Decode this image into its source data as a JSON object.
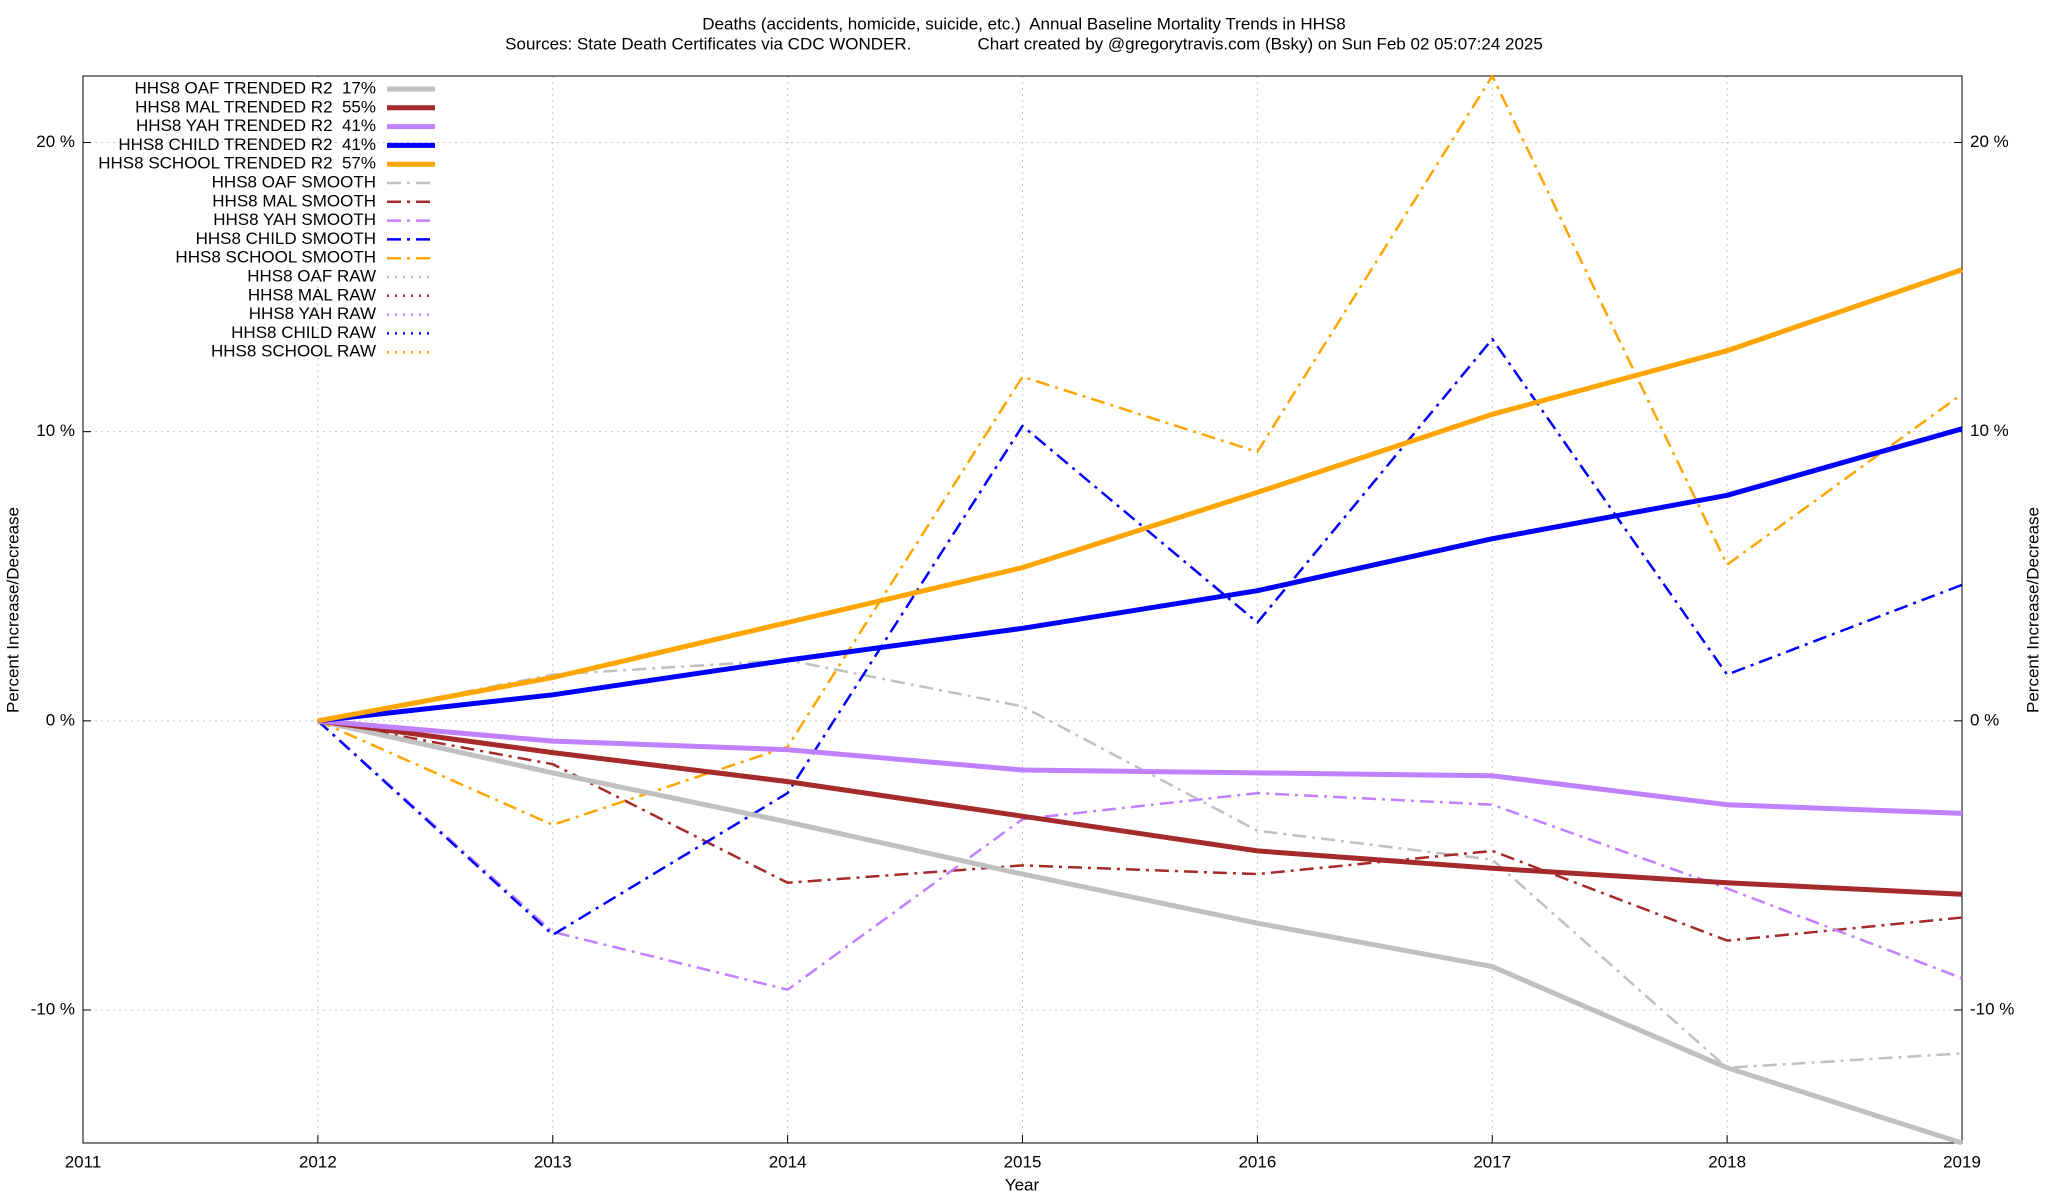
{
  "chart_data": {
    "type": "line",
    "title": "Deaths (accidents, homicide, suicide, etc.)  Annual Baseline Mortality Trends in HHS8",
    "subtitle": "Sources: State Death Certificates via CDC WONDER.              Chart created by @gregorytravis.com (Bsky) on Sun Feb 02 05:07:24 2025",
    "xlabel": "Year",
    "ylabel": "Percent Increase/Decrease",
    "y2label": "Percent Increase/Decrease",
    "x": [
      2011,
      2012,
      2013,
      2014,
      2015,
      2016,
      2017,
      2018,
      2019
    ],
    "xlim": [
      2011,
      2019
    ],
    "xticks": [
      2011,
      2012,
      2013,
      2014,
      2015,
      2016,
      2017,
      2018,
      2019
    ],
    "ylim": [
      -14.6,
      22.3
    ],
    "yticks": [
      {
        "value": -10,
        "label": "-10 %"
      },
      {
        "value": 0,
        "label": "0 %"
      },
      {
        "value": 10,
        "label": "10 %"
      },
      {
        "value": 20,
        "label": "20 %"
      }
    ],
    "y2lim": [
      -14.6,
      22.3
    ],
    "y2ticks": [
      {
        "value": -10,
        "label": "-10 %"
      },
      {
        "value": 0,
        "label": "0 %"
      },
      {
        "value": 10,
        "label": "10 %"
      },
      {
        "value": 20,
        "label": "20 %"
      }
    ],
    "grid": true,
    "legend": "top-left",
    "series": [
      {
        "name": "HHS8 OAF TRENDED R2  17%",
        "color": "#c0c0c0",
        "style": "solid",
        "values": [
          null,
          0,
          -1.8,
          -3.5,
          -5.3,
          -7.0,
          -8.5,
          -12.0,
          -14.6
        ]
      },
      {
        "name": "HHS8 MAL TRENDED R2  55%",
        "color": "#a52a2a",
        "style": "solid",
        "values": [
          null,
          0,
          -1.1,
          -2.1,
          -3.3,
          -4.5,
          -5.1,
          -5.6,
          -6.0
        ]
      },
      {
        "name": "HHS8 YAH TRENDED R2  41%",
        "color": "#c080ff",
        "style": "solid",
        "values": [
          null,
          0,
          -0.7,
          -1.0,
          -1.7,
          -1.8,
          -1.9,
          -2.9,
          -3.2
        ]
      },
      {
        "name": "HHS8 CHILD TRENDED R2  41%",
        "color": "#0000ff",
        "style": "solid",
        "values": [
          null,
          0,
          0.9,
          2.1,
          3.2,
          4.5,
          6.3,
          7.8,
          10.1
        ]
      },
      {
        "name": "HHS8 SCHOOL TRENDED R2  57%",
        "color": "#ffa500",
        "style": "solid",
        "values": [
          null,
          0,
          1.5,
          3.4,
          5.3,
          7.9,
          10.6,
          12.8,
          15.6
        ]
      },
      {
        "name": "HHS8 OAF SMOOTH",
        "color": "#c0c0c0",
        "style": "dashdot",
        "values": [
          null,
          0,
          1.6,
          2.1,
          0.5,
          -3.8,
          -4.8,
          -12.0,
          -11.5
        ]
      },
      {
        "name": "HHS8 MAL SMOOTH",
        "color": "#a52a2a",
        "style": "dashdot",
        "values": [
          null,
          0,
          -1.5,
          -5.6,
          -5.0,
          -5.3,
          -4.5,
          -7.6,
          -6.8
        ]
      },
      {
        "name": "HHS8 YAH SMOOTH",
        "color": "#c080ff",
        "style": "dashdot",
        "values": [
          null,
          0,
          -7.3,
          -9.3,
          -3.4,
          -2.5,
          -2.9,
          -5.8,
          -8.9
        ]
      },
      {
        "name": "HHS8 CHILD SMOOTH",
        "color": "#0000ff",
        "style": "dashdot",
        "values": [
          null,
          0,
          -7.4,
          -2.5,
          10.2,
          3.4,
          13.2,
          1.6,
          4.7
        ]
      },
      {
        "name": "HHS8 SCHOOL SMOOTH",
        "color": "#ffa500",
        "style": "dashdot",
        "values": [
          null,
          0,
          -3.6,
          -0.9,
          11.9,
          9.3,
          22.3,
          5.4,
          11.3
        ]
      },
      {
        "name": "HHS8 OAF RAW",
        "color": "#c0c0c0",
        "style": "dotted",
        "values": [
          null,
          null,
          null,
          null,
          null,
          null,
          null,
          null,
          null
        ]
      },
      {
        "name": "HHS8 MAL RAW",
        "color": "#a52a2a",
        "style": "dotted",
        "values": [
          null,
          null,
          null,
          null,
          null,
          null,
          null,
          null,
          null
        ]
      },
      {
        "name": "HHS8 YAH RAW",
        "color": "#c080ff",
        "style": "dotted",
        "values": [
          null,
          null,
          null,
          null,
          null,
          null,
          null,
          null,
          null
        ]
      },
      {
        "name": "HHS8 CHILD RAW",
        "color": "#0000ff",
        "style": "dotted",
        "values": [
          null,
          null,
          null,
          null,
          null,
          null,
          null,
          null,
          null
        ]
      },
      {
        "name": "HHS8 SCHOOL RAW",
        "color": "#ffa500",
        "style": "dotted",
        "values": [
          null,
          null,
          null,
          null,
          null,
          null,
          null,
          null,
          null
        ]
      }
    ]
  }
}
